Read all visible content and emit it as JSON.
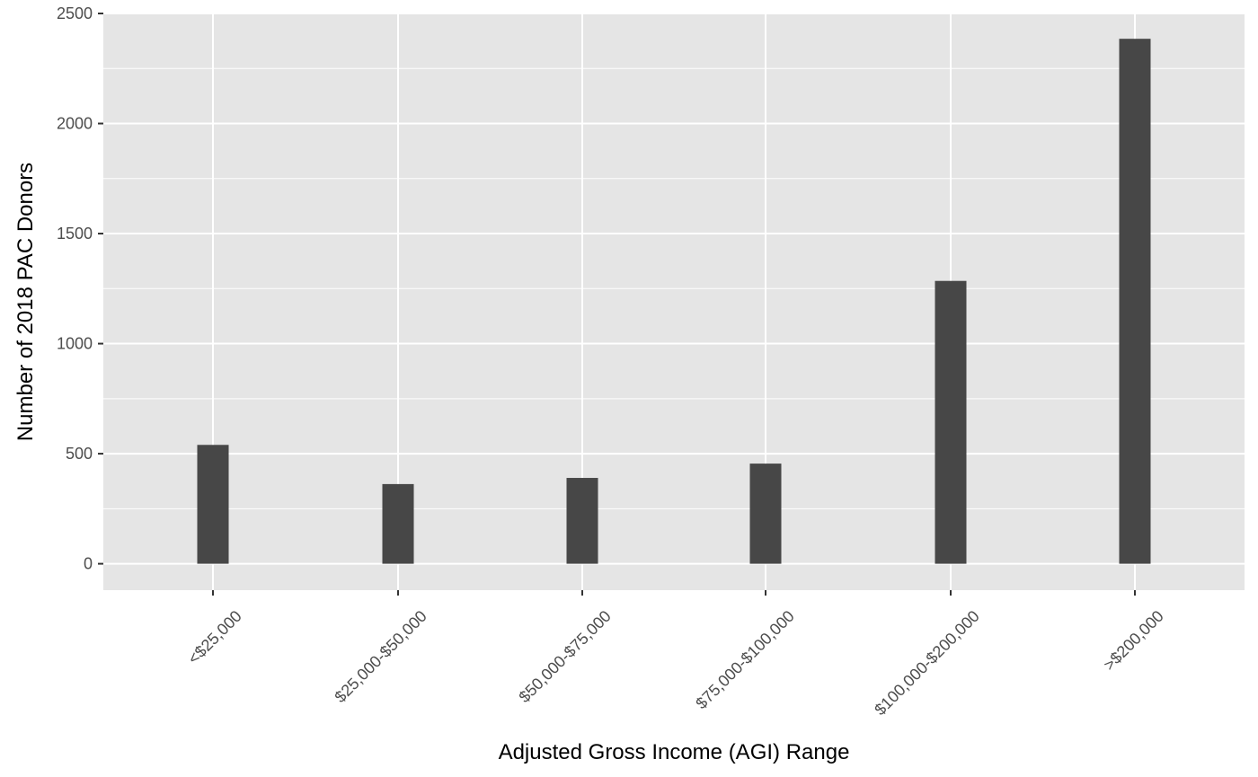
{
  "chart_data": {
    "type": "bar",
    "title": "",
    "xlabel": "Adjusted Gross Income (AGI) Range",
    "ylabel": "Number of 2018 PAC Donors",
    "categories": [
      "<$25,000",
      "$25,000-$50,000",
      "$50,000-$75,000",
      "$75,000-$100,000",
      "$100,000-$200,000",
      ">$200,000"
    ],
    "values": [
      540,
      362,
      390,
      455,
      1285,
      2385
    ],
    "ylim": [
      -120,
      2500
    ],
    "yticks": [
      0,
      500,
      1000,
      1500,
      2000,
      2500
    ],
    "grid": true,
    "legend": "none",
    "colors": {
      "panel": "#e5e5e5",
      "bar": "#474747",
      "grid": "#ffffff",
      "tick": "#333333"
    }
  }
}
